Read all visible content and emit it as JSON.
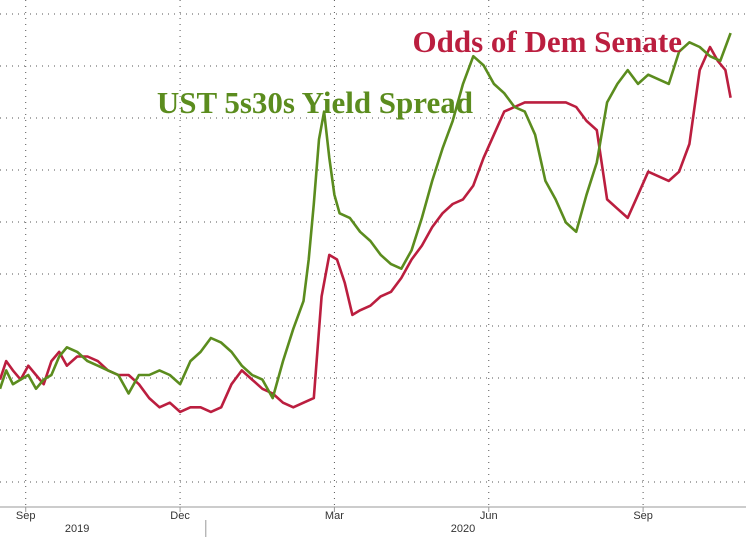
{
  "chart_data": {
    "type": "line",
    "title": "",
    "xlabel": "",
    "ylabel": "",
    "grid": true,
    "x_ticks": [
      {
        "label": "Sep",
        "x": 0.5
      },
      {
        "label": "Dec",
        "x": 3.5
      },
      {
        "label": "Mar",
        "x": 6.5
      },
      {
        "label": "Jun",
        "x": 9.5
      },
      {
        "label": "Sep",
        "x": 12.5
      }
    ],
    "year_labels": [
      {
        "label": "2019",
        "x": 1.5
      },
      {
        "label": "2020",
        "x": 9.0
      }
    ],
    "year_divider_x": 4.0,
    "xlim": [
      0,
      14.5
    ],
    "ylim": [
      0,
      100
    ],
    "series": [
      {
        "name": "Odds of Dem Senate",
        "color": "#bb1e3f",
        "x": [
          0.0,
          0.12,
          0.25,
          0.4,
          0.55,
          0.7,
          0.85,
          1.0,
          1.15,
          1.3,
          1.5,
          1.7,
          1.9,
          2.1,
          2.3,
          2.5,
          2.7,
          2.9,
          3.1,
          3.3,
          3.5,
          3.7,
          3.9,
          4.1,
          4.3,
          4.5,
          4.7,
          4.9,
          5.1,
          5.3,
          5.5,
          5.7,
          5.9,
          6.1,
          6.25,
          6.4,
          6.55,
          6.7,
          6.85,
          7.0,
          7.2,
          7.4,
          7.6,
          7.8,
          8.0,
          8.2,
          8.4,
          8.6,
          8.8,
          9.0,
          9.2,
          9.4,
          9.6,
          9.8,
          10.0,
          10.2,
          10.4,
          10.6,
          10.8,
          11.0,
          11.2,
          11.4,
          11.6,
          11.8,
          12.0,
          12.2,
          12.4,
          12.6,
          12.8,
          13.0,
          13.2,
          13.4,
          13.6,
          13.8,
          13.95,
          14.1,
          14.2
        ],
        "values": [
          20,
          24,
          22,
          20,
          23,
          21,
          19,
          24,
          26,
          23,
          25,
          25,
          24,
          22,
          21,
          21,
          19,
          16,
          14,
          15,
          13,
          14,
          14,
          13,
          14,
          19,
          22,
          20,
          18,
          17,
          15,
          14,
          15,
          16,
          38,
          47,
          46,
          41,
          34,
          35,
          36,
          38,
          39,
          42,
          46,
          49,
          53,
          56,
          58,
          59,
          62,
          68,
          73,
          78,
          79,
          80,
          80,
          80,
          80,
          80,
          79,
          76,
          74,
          59,
          57,
          55,
          60,
          65,
          64,
          63,
          65,
          71,
          87,
          92,
          89,
          87,
          81
        ]
      },
      {
        "name": "UST 5s30s Yield Spread",
        "color": "#5b8c1e",
        "x": [
          0.0,
          0.12,
          0.25,
          0.4,
          0.55,
          0.7,
          0.85,
          1.0,
          1.15,
          1.3,
          1.5,
          1.7,
          1.9,
          2.1,
          2.3,
          2.5,
          2.7,
          2.9,
          3.1,
          3.3,
          3.5,
          3.7,
          3.9,
          4.1,
          4.3,
          4.5,
          4.7,
          4.9,
          5.1,
          5.3,
          5.5,
          5.7,
          5.9,
          6.0,
          6.1,
          6.2,
          6.3,
          6.4,
          6.5,
          6.6,
          6.8,
          7.0,
          7.2,
          7.4,
          7.6,
          7.8,
          8.0,
          8.2,
          8.4,
          8.6,
          8.8,
          9.0,
          9.2,
          9.4,
          9.6,
          9.8,
          10.0,
          10.2,
          10.4,
          10.6,
          10.8,
          11.0,
          11.2,
          11.4,
          11.6,
          11.8,
          12.0,
          12.2,
          12.4,
          12.6,
          12.8,
          13.0,
          13.2,
          13.4,
          13.6,
          13.8,
          14.0,
          14.2
        ],
        "values": [
          18,
          22,
          19,
          20,
          21,
          18,
          20,
          21,
          25,
          27,
          26,
          24,
          23,
          22,
          21,
          17,
          21,
          21,
          22,
          21,
          19,
          24,
          26,
          29,
          28,
          26,
          23,
          21,
          20,
          16,
          24,
          31,
          37,
          46,
          58,
          72,
          78,
          68,
          60,
          56,
          55,
          52,
          50,
          47,
          45,
          44,
          48,
          55,
          63,
          70,
          76,
          84,
          90,
          88,
          84,
          82,
          79,
          78,
          73,
          63,
          59,
          54,
          52,
          60,
          67,
          80,
          84,
          87,
          84,
          86,
          85,
          84,
          91,
          93,
          92,
          90,
          89,
          95
        ]
      }
    ],
    "annotations": [
      {
        "text": "Odds of Dem Senate",
        "color": "#bb1e3f"
      },
      {
        "text": "UST 5s30s Yield Spread",
        "color": "#5b8c1e"
      }
    ]
  }
}
